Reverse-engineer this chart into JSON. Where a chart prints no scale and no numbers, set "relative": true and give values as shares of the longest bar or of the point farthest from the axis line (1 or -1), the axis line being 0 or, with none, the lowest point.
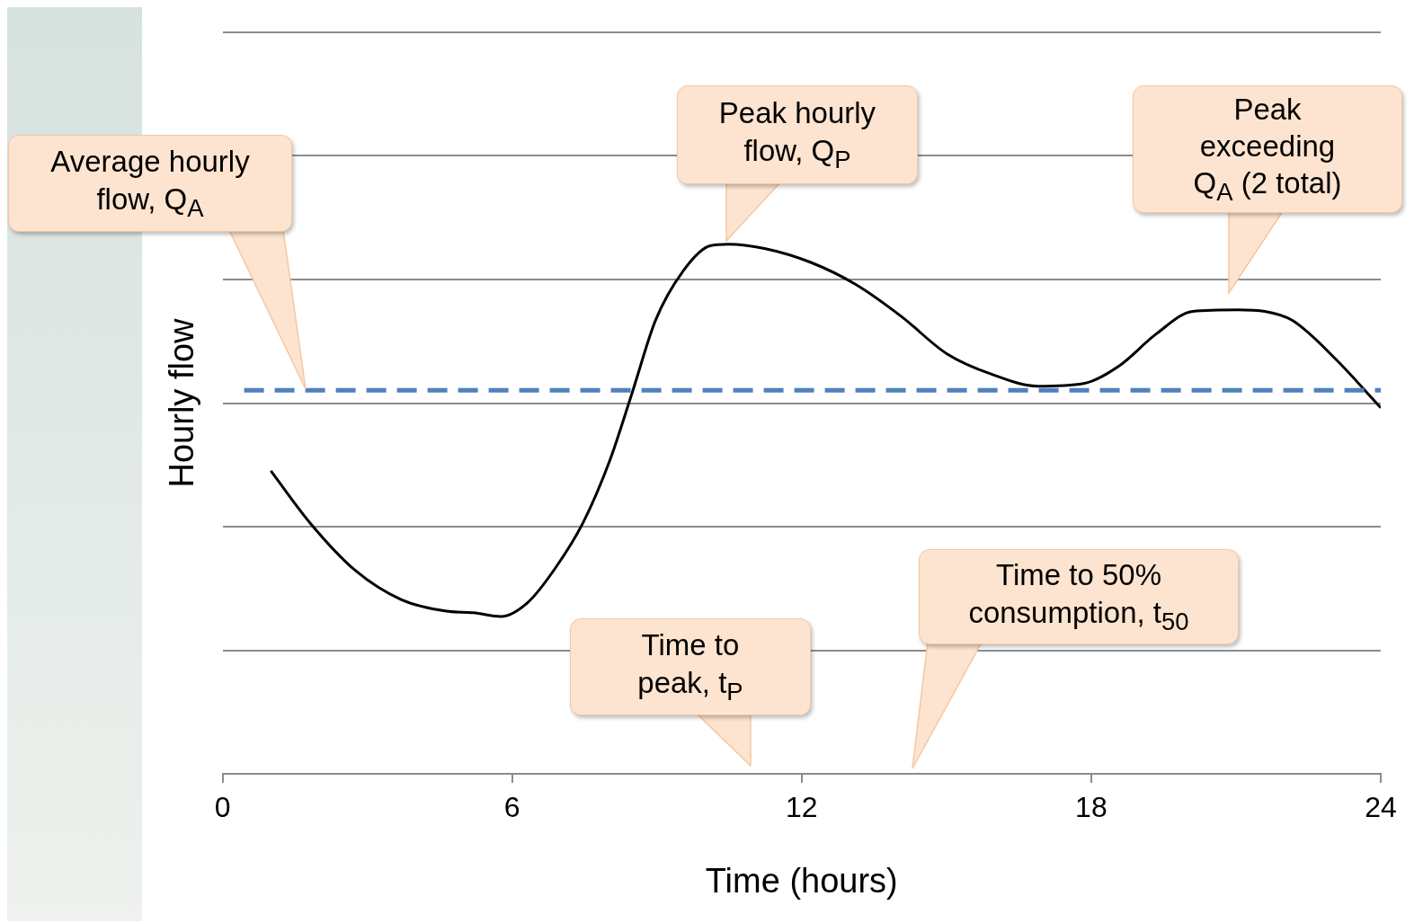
{
  "chart_data": {
    "type": "line",
    "xlabel": "Time (hours)",
    "ylabel": "Hourly flow",
    "relative": true,
    "color": "#000000",
    "marker": "none",
    "grid": "y",
    "x": [
      1.0,
      1.81,
      2.75,
      3.7,
      4.64,
      5.2,
      5.77,
      6.33,
      6.9,
      7.47,
      8.03,
      8.5,
      8.97,
      9.54,
      10.1,
      10.48,
      11.23,
      12.18,
      13.12,
      14.06,
      15.01,
      15.95,
      16.89,
      17.84,
      18.59,
      19.34,
      20.1,
      21.04,
      21.6,
      22.17,
      23.11,
      24.0
    ],
    "values": [
      0.572,
      0.474,
      0.384,
      0.329,
      0.307,
      0.304,
      0.297,
      0.324,
      0.389,
      0.474,
      0.593,
      0.723,
      0.856,
      0.949,
      0.997,
      1.0,
      0.992,
      0.966,
      0.924,
      0.864,
      0.793,
      0.754,
      0.732,
      0.737,
      0.771,
      0.83,
      0.873,
      0.876,
      0.873,
      0.856,
      0.779,
      0.691
    ],
    "xlim": [
      0,
      24
    ],
    "xticks": [
      0,
      6,
      12,
      18,
      24
    ],
    "ref_lines": [
      {
        "axis": "y",
        "value": 0.724,
        "color": "#4f81bd",
        "line_style": "dashed"
      }
    ],
    "annotations": [
      "Average hourly flow, Q$_{A}$",
      "Peak hourly flow, Q$_{P}$",
      "Peak exceeding Q$_{A}$ (2 total)",
      "Time to peak, t$_{P}$",
      "Time to 50% consumption, t$_{50}$"
    ]
  }
}
